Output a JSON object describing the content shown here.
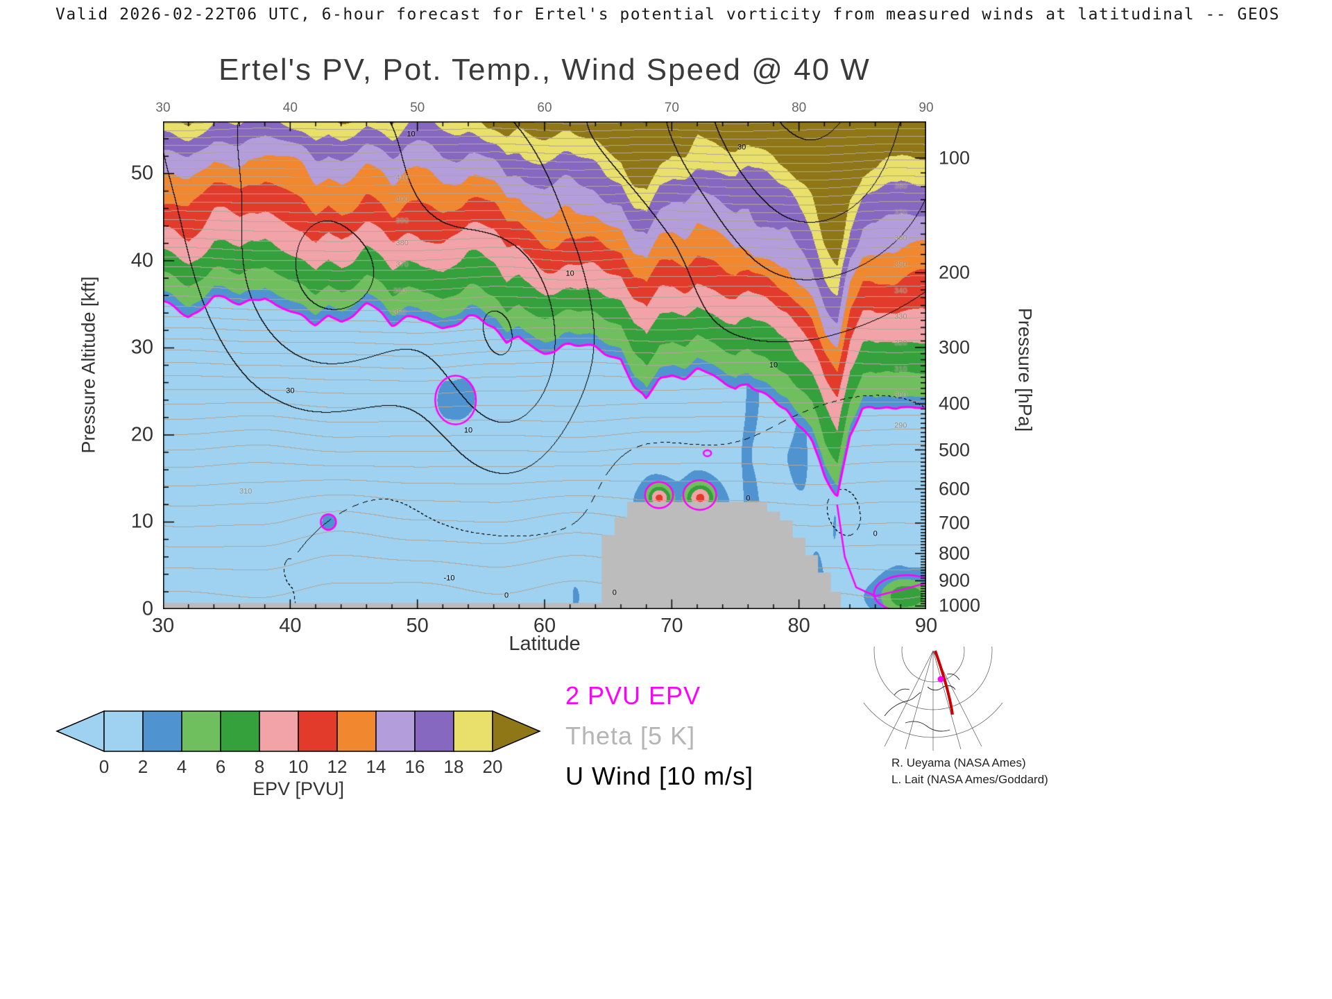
{
  "header": {
    "text": "Valid 2026-02-22T06 UTC, 6-hour forecast for Ertel's potential vorticity from measured winds at latitudinal -- GEOS"
  },
  "chart_data": {
    "type": "heatmap",
    "title": "Ertel's PV, Pot. Temp., Wind Speed @ 40 W",
    "xlabel": "Latitude",
    "ylabel_left": "Pressure Altitude [kft]",
    "ylabel_right": "Pressure [hPa]",
    "xlim": [
      30,
      90
    ],
    "ylim_kft": [
      0,
      56
    ],
    "x_ticks": [
      30,
      40,
      50,
      60,
      70,
      80,
      90
    ],
    "x_minor_step": 2,
    "y_ticks_kft": [
      0,
      10,
      20,
      30,
      40,
      50
    ],
    "y_minor_step_kft": 2,
    "y_ticks_hpa": [
      100,
      200,
      300,
      400,
      500,
      600,
      700,
      800,
      900,
      1000
    ],
    "colorbar": {
      "label": "EPV [PVU]",
      "ticks": [
        0,
        2,
        4,
        6,
        8,
        10,
        12,
        14,
        16,
        18,
        20
      ],
      "colors": [
        "#9fd2f0",
        "#4f94d0",
        "#6fbf5e",
        "#35a13c",
        "#f2a3a8",
        "#e23b2b",
        "#f1872f",
        "#b39ddb",
        "#8668c0",
        "#e8e06a"
      ],
      "under_color": "#9fd2f0",
      "over_color": "#8f7616"
    },
    "overlays": [
      {
        "label": "2 PVU EPV",
        "color": "#ff00ff"
      },
      {
        "label": "Theta [5 K]",
        "color": "#b5b5b5"
      },
      {
        "label": "U Wind [10 m/s]",
        "color": "#000000"
      }
    ],
    "tropopause_2pvu_kft": [
      [
        30,
        35.5
      ],
      [
        32,
        34
      ],
      [
        34,
        36
      ],
      [
        36,
        34.5
      ],
      [
        38,
        35.5
      ],
      [
        40,
        34
      ],
      [
        42,
        32.5
      ],
      [
        43,
        34
      ],
      [
        44,
        33
      ],
      [
        46,
        34.5
      ],
      [
        48,
        33
      ],
      [
        50,
        34
      ],
      [
        52,
        32.5
      ],
      [
        54,
        33.5
      ],
      [
        56,
        32
      ],
      [
        57,
        30.5
      ],
      [
        58,
        31.5
      ],
      [
        60,
        30
      ],
      [
        62,
        30.5
      ],
      [
        64,
        29.5
      ],
      [
        66,
        29
      ],
      [
        67,
        26
      ],
      [
        68,
        23.5
      ],
      [
        69,
        26
      ],
      [
        70,
        27
      ],
      [
        71,
        26.5
      ],
      [
        72,
        27.5
      ],
      [
        74,
        26.5
      ],
      [
        75,
        25.5
      ],
      [
        76,
        26.5
      ],
      [
        78,
        25
      ],
      [
        79,
        23.5
      ],
      [
        80,
        21
      ],
      [
        81,
        19
      ],
      [
        82,
        15
      ],
      [
        83,
        13
      ],
      [
        84,
        20
      ],
      [
        85,
        23
      ],
      [
        86,
        22.5
      ],
      [
        88,
        23.5
      ],
      [
        90,
        22.5
      ]
    ],
    "tropopause_fold_kft": [
      [
        83,
        12
      ],
      [
        83.6,
        6
      ],
      [
        84.5,
        2.5
      ],
      [
        86,
        1.5
      ],
      [
        88,
        2.2
      ],
      [
        90,
        3
      ]
    ],
    "pv_loops": [
      [
        53,
        24,
        1.6,
        2.8
      ],
      [
        43,
        10,
        0.6,
        0.9
      ],
      [
        72.8,
        17.9,
        0.3,
        0.35
      ],
      [
        69,
        13.1,
        1.1,
        1.5
      ],
      [
        72.2,
        13.1,
        1.3,
        1.7
      ],
      [
        88.5,
        1.8,
        2.6,
        2.1
      ]
    ],
    "terrain_kft": [
      [
        30,
        0.7
      ],
      [
        64.5,
        0.7
      ],
      [
        64.5,
        8.5
      ],
      [
        65.5,
        8.5
      ],
      [
        65.5,
        10.5
      ],
      [
        66.5,
        10.5
      ],
      [
        66.5,
        12.3
      ],
      [
        77.5,
        12.3
      ],
      [
        77.5,
        11.2
      ],
      [
        78.5,
        11.2
      ],
      [
        78.5,
        10.2
      ],
      [
        79.5,
        10.2
      ],
      [
        79.5,
        8.2
      ],
      [
        80.5,
        8.2
      ],
      [
        80.5,
        6.2
      ],
      [
        81.5,
        6.2
      ],
      [
        81.5,
        4.2
      ],
      [
        82.5,
        4.2
      ],
      [
        82.5,
        2.0
      ],
      [
        83.3,
        2.0
      ],
      [
        83.3,
        0
      ],
      [
        30,
        0
      ]
    ],
    "terrain_color": "#bcbcbc",
    "theta_contour_labels": [
      [
        48.8,
        49.5,
        "410"
      ],
      [
        48.8,
        47.0,
        "400"
      ],
      [
        48.8,
        44.5,
        "390"
      ],
      [
        48.8,
        42.0,
        "380"
      ],
      [
        48.8,
        39.5,
        "370"
      ],
      [
        48.6,
        36.5,
        "360"
      ],
      [
        48.6,
        34.0,
        "350"
      ],
      [
        88,
        48.5,
        "380"
      ],
      [
        88,
        45.5,
        "370"
      ],
      [
        88,
        42.5,
        "360"
      ],
      [
        88,
        39.5,
        "350"
      ],
      [
        88,
        36.5,
        "340"
      ],
      [
        88,
        33.5,
        "330"
      ],
      [
        88,
        30.5,
        "320"
      ],
      [
        88,
        27.5,
        "310"
      ],
      [
        88,
        24.5,
        "300"
      ],
      [
        88,
        21.0,
        "290"
      ],
      [
        36.5,
        13.5,
        "310"
      ]
    ],
    "wind_contour_labels": [
      [
        49.5,
        54.5,
        "10"
      ],
      [
        75.5,
        53,
        "30"
      ],
      [
        40,
        25,
        "30"
      ],
      [
        54,
        20.5,
        "10"
      ],
      [
        62,
        38.5,
        "10"
      ],
      [
        52.5,
        3.5,
        "-10"
      ],
      [
        57,
        1.5,
        "0"
      ],
      [
        78,
        28,
        "10"
      ],
      [
        65.5,
        1.8,
        "0"
      ],
      [
        76,
        12.7,
        "0"
      ],
      [
        86,
        8.6,
        "0"
      ]
    ]
  },
  "inset": {
    "red_meridian_color": "#cc0000",
    "marker_color": "#ff00ff"
  },
  "credits": {
    "line1": "R. Ueyama (NASA Ames)",
    "line2": "L. Lait (NASA Ames/Goddard)"
  }
}
